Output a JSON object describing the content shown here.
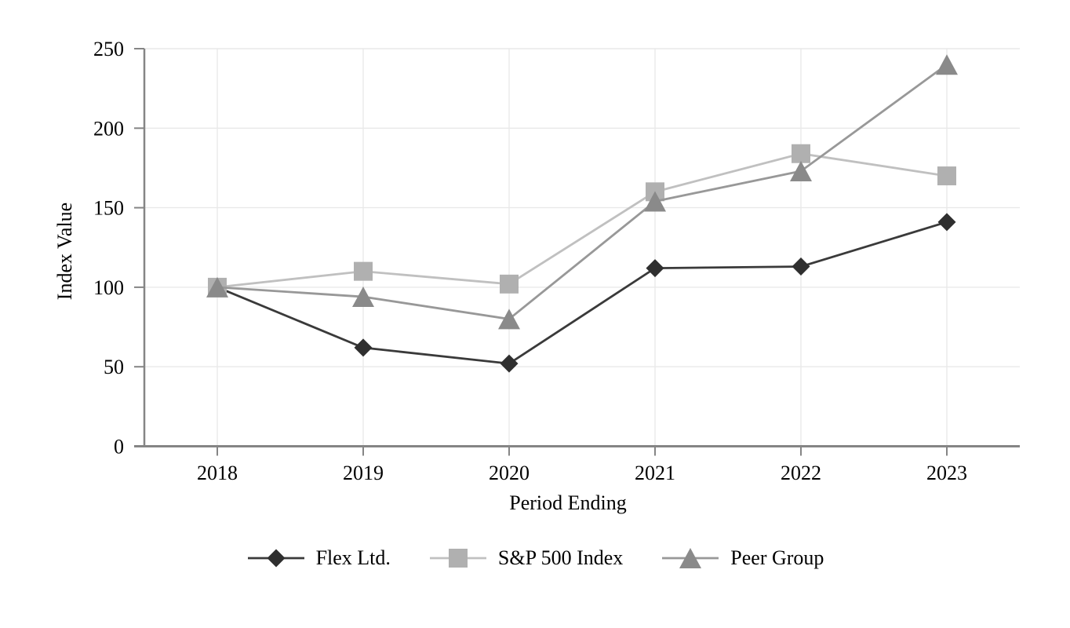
{
  "chart_data": {
    "type": "line",
    "title": "",
    "xlabel": "Period Ending",
    "ylabel": "Index Value",
    "categories": [
      "2018",
      "2019",
      "2020",
      "2021",
      "2022",
      "2023"
    ],
    "ylim": [
      0,
      250
    ],
    "yticks": [
      0,
      50,
      100,
      150,
      200,
      250
    ],
    "grid": true,
    "legend_position": "bottom",
    "series": [
      {
        "name": "Flex Ltd.",
        "values": [
          100,
          62,
          52,
          112,
          113,
          141
        ],
        "line_color": "#3a3a3a",
        "marker_color": "#2f2f2f",
        "marker": "diamond"
      },
      {
        "name": "S&P 500 Index",
        "values": [
          100,
          110,
          102,
          160,
          184,
          170
        ],
        "line_color": "#c0c0c0",
        "marker_color": "#b0b0b0",
        "marker": "square"
      },
      {
        "name": "Peer Group",
        "values": [
          100,
          94,
          80,
          154,
          173,
          240
        ],
        "line_color": "#989898",
        "marker_color": "#8a8a8a",
        "marker": "triangle"
      }
    ]
  },
  "colors": {
    "axis": "#858585",
    "grid": "#e9e9e9",
    "text": "#000000",
    "background": "#ffffff"
  }
}
